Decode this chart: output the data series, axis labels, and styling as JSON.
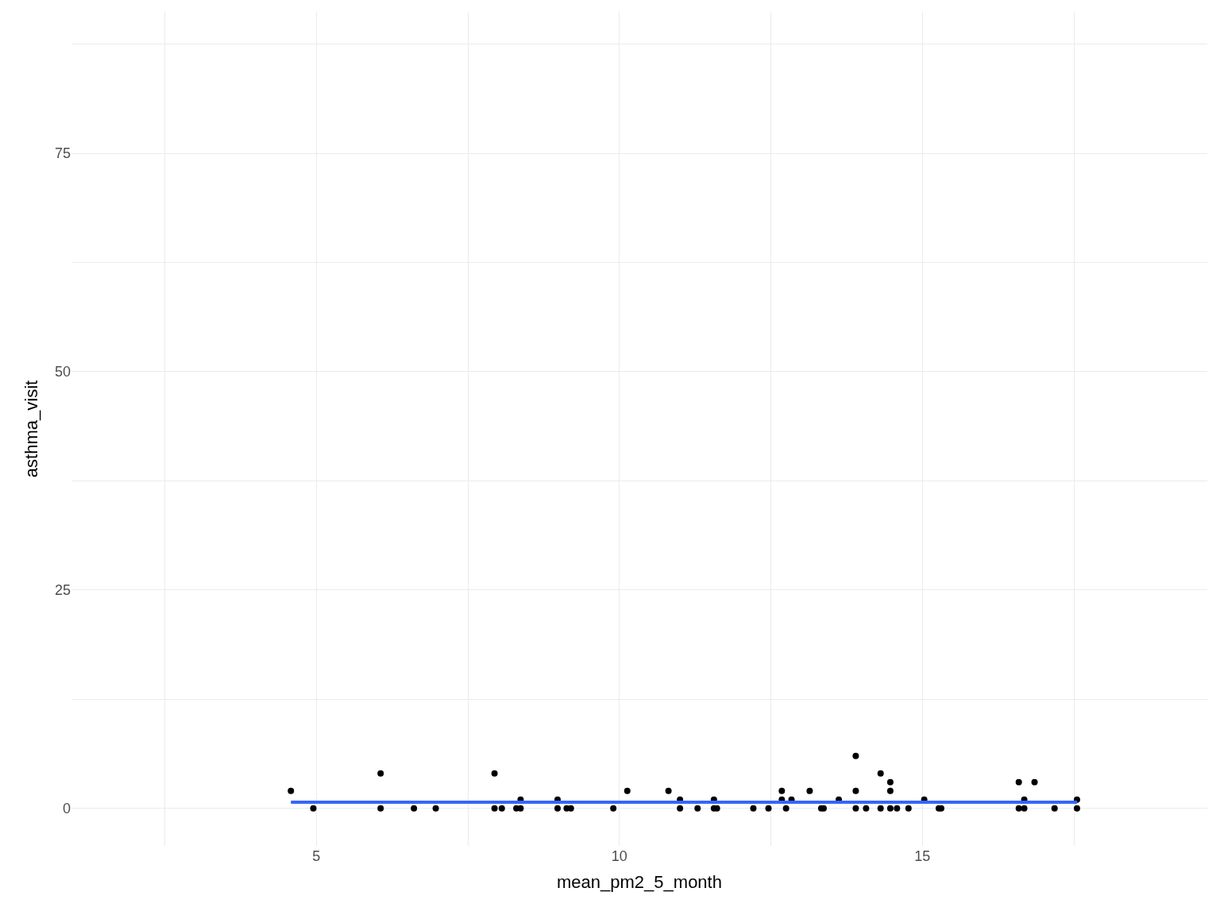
{
  "chart_data": {
    "type": "scatter",
    "xlabel": "mean_pm2_5_month",
    "ylabel": "asthma_visit",
    "xlim": [
      0.96,
      19.7
    ],
    "ylim": [
      -4.3,
      91.2
    ],
    "xticks": [
      5,
      10,
      15
    ],
    "yticks": [
      0,
      25,
      50,
      75
    ],
    "grid": true,
    "series": [
      {
        "color": "#000000",
        "marker": "circle",
        "x": [
          4.58,
          4.95,
          6.06,
          6.06,
          6.61,
          6.97,
          7.94,
          7.94,
          8.06,
          8.3,
          8.37,
          8.37,
          8.98,
          8.98,
          9.13,
          9.2,
          9.9,
          10.13,
          10.81,
          11.0,
          11.0,
          11.29,
          11.56,
          11.56,
          11.61,
          12.21,
          12.46,
          12.68,
          12.68,
          12.75,
          12.84,
          13.14,
          13.33,
          13.37,
          13.62,
          13.9,
          13.9,
          13.9,
          14.07,
          14.31,
          14.31,
          14.47,
          14.47,
          14.47,
          14.58,
          14.77,
          15.03,
          15.27,
          15.31,
          16.59,
          16.59,
          16.68,
          16.68,
          16.85,
          17.18,
          17.55,
          17.55
        ],
        "values": [
          2,
          0,
          4,
          0,
          0,
          0,
          4,
          0,
          0,
          0,
          0,
          1,
          1,
          0,
          0,
          0,
          0,
          2,
          2,
          1,
          0,
          0,
          1,
          0,
          0,
          0,
          0,
          2,
          1,
          0,
          1,
          2,
          0,
          0,
          1,
          6,
          2,
          0,
          0,
          4,
          0,
          3,
          2,
          0,
          0,
          0,
          1,
          0,
          0,
          3,
          0,
          1,
          0,
          3,
          0,
          1,
          0
        ]
      },
      {
        "type": "line",
        "color": "#3366ff",
        "line_style": "solid",
        "marker": "none",
        "x": [
          4.58,
          17.55
        ],
        "values": [
          0.7,
          0.7
        ]
      }
    ]
  }
}
